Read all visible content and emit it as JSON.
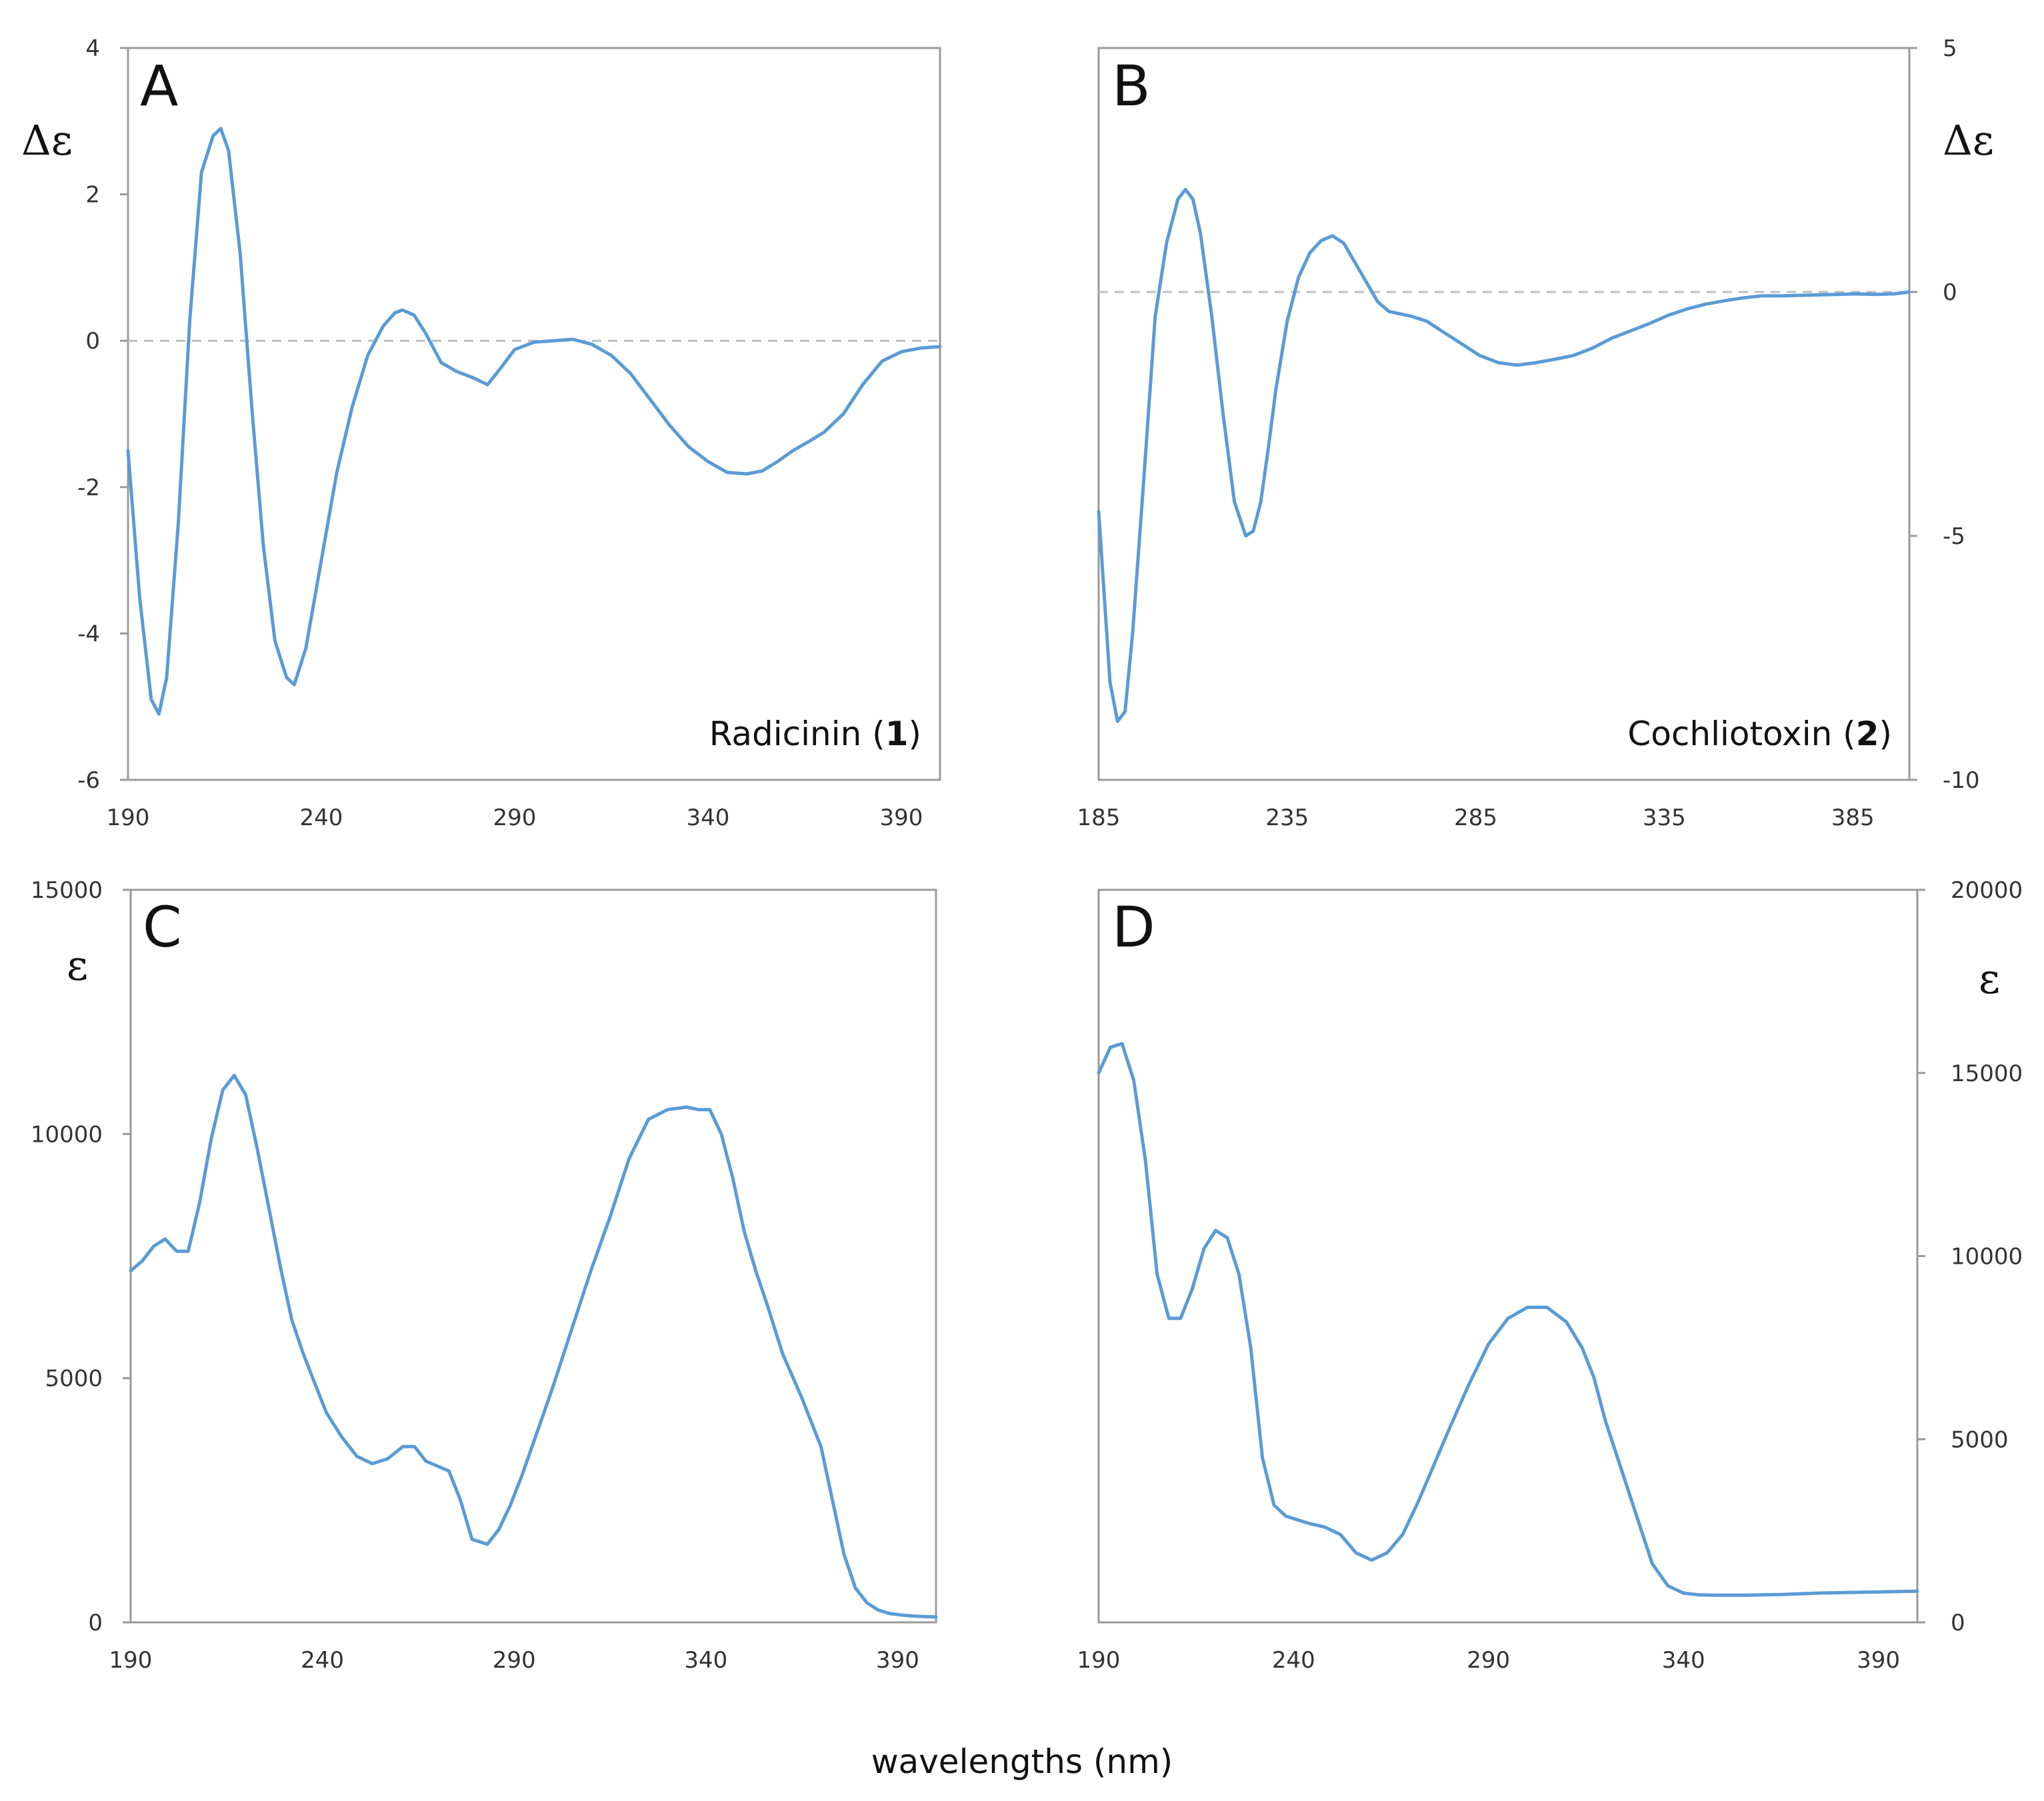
{
  "x_axis_label": "wavelengths (nm)",
  "line_color": "#5b9bd5",
  "chart_data": [
    {
      "id": "A",
      "type": "line",
      "panel_label": "A",
      "ylabel": "Δε",
      "y_axis_side": "left",
      "compound_name": "Radicinin (",
      "compound_number": "1",
      "compound_close": ")",
      "xlim": [
        190,
        400
      ],
      "ylim": [
        -6,
        4
      ],
      "xticks": [
        190,
        240,
        290,
        340,
        390
      ],
      "yticks": [
        4,
        2,
        0,
        -2,
        -4,
        -6
      ],
      "zero_line": true,
      "x": [
        190,
        193,
        196,
        198,
        200,
        203,
        206,
        209,
        212,
        214,
        216,
        219,
        222,
        225,
        228,
        231,
        233,
        236,
        240,
        244,
        248,
        252,
        256,
        259,
        261,
        264,
        267,
        271,
        275,
        279,
        283,
        286,
        290,
        295,
        300,
        305,
        310,
        315,
        320,
        325,
        330,
        335,
        340,
        345,
        350,
        354,
        358,
        362,
        366,
        370,
        375,
        380,
        385,
        390,
        395,
        400
      ],
      "y": [
        -1.5,
        -3.5,
        -4.9,
        -5.1,
        -4.6,
        -2.5,
        0.3,
        2.3,
        2.8,
        2.9,
        2.6,
        1.2,
        -0.9,
        -2.8,
        -4.1,
        -4.6,
        -4.7,
        -4.2,
        -3.0,
        -1.8,
        -0.9,
        -0.2,
        0.2,
        0.38,
        0.42,
        0.35,
        0.1,
        -0.3,
        -0.42,
        -0.5,
        -0.6,
        -0.4,
        -0.12,
        -0.02,
        0.0,
        0.02,
        -0.05,
        -0.2,
        -0.45,
        -0.8,
        -1.15,
        -1.45,
        -1.65,
        -1.8,
        -1.82,
        -1.78,
        -1.65,
        -1.5,
        -1.38,
        -1.25,
        -1.0,
        -0.6,
        -0.28,
        -0.15,
        -0.1,
        -0.08
      ]
    },
    {
      "id": "B",
      "type": "line",
      "panel_label": "B",
      "ylabel": "Δε",
      "y_axis_side": "right",
      "compound_name": "Cochliotoxin (",
      "compound_number": "2",
      "compound_close": ")",
      "xlim": [
        185,
        400
      ],
      "ylim": [
        -10,
        5
      ],
      "xticks": [
        185,
        235,
        285,
        335,
        385
      ],
      "yticks": [
        5,
        0,
        -5,
        -10
      ],
      "zero_line": true,
      "x": [
        185,
        188,
        190,
        192,
        194,
        197,
        200,
        203,
        206,
        208,
        210,
        212,
        215,
        218,
        221,
        224,
        226,
        228,
        230,
        232,
        235,
        238,
        241,
        244,
        247,
        250,
        253,
        256,
        259,
        262,
        265,
        268,
        272,
        276,
        281,
        286,
        291,
        296,
        301,
        306,
        311,
        316,
        321,
        326,
        331,
        336,
        341,
        346,
        351,
        356,
        361,
        366,
        371,
        376,
        381,
        386,
        391,
        396,
        400
      ],
      "y": [
        -4.5,
        -8.0,
        -8.8,
        -8.6,
        -7.0,
        -3.8,
        -0.5,
        1.0,
        1.9,
        2.1,
        1.9,
        1.2,
        -0.5,
        -2.5,
        -4.3,
        -5.0,
        -4.9,
        -4.3,
        -3.2,
        -2.0,
        -0.6,
        0.3,
        0.8,
        1.05,
        1.15,
        1.0,
        0.6,
        0.2,
        -0.2,
        -0.4,
        -0.45,
        -0.5,
        -0.6,
        -0.8,
        -1.05,
        -1.3,
        -1.45,
        -1.5,
        -1.45,
        -1.38,
        -1.3,
        -1.15,
        -0.95,
        -0.8,
        -0.65,
        -0.48,
        -0.35,
        -0.25,
        -0.18,
        -0.12,
        -0.08,
        -0.08,
        -0.07,
        -0.06,
        -0.05,
        -0.04,
        -0.05,
        -0.04,
        0.0
      ]
    },
    {
      "id": "C",
      "type": "line",
      "panel_label": "C",
      "ylabel": "ε",
      "y_axis_side": "left",
      "xlim": [
        190,
        400
      ],
      "ylim": [
        0,
        15000
      ],
      "xticks": [
        190,
        240,
        290,
        340,
        390
      ],
      "yticks": [
        15000,
        10000,
        5000,
        0
      ],
      "zero_line": false,
      "x": [
        190,
        193,
        196,
        199,
        202,
        205,
        208,
        211,
        214,
        217,
        220,
        223,
        226,
        229,
        232,
        235,
        238,
        241,
        245,
        249,
        253,
        257,
        261,
        264,
        267,
        270,
        273,
        276,
        279,
        283,
        286,
        289,
        292,
        296,
        300,
        305,
        310,
        315,
        320,
        325,
        330,
        335,
        338,
        341,
        344,
        347,
        350,
        353,
        356,
        360,
        365,
        370,
        373,
        376,
        379,
        382,
        385,
        388,
        391,
        394,
        397,
        400
      ],
      "y": [
        7200,
        7400,
        7700,
        7850,
        7600,
        7600,
        8600,
        9900,
        10900,
        11200,
        10800,
        9700,
        8500,
        7300,
        6200,
        5500,
        4900,
        4300,
        3800,
        3400,
        3250,
        3350,
        3600,
        3600,
        3300,
        3200,
        3100,
        2500,
        1700,
        1600,
        1900,
        2400,
        3000,
        3900,
        4800,
        6000,
        7200,
        8300,
        9500,
        10300,
        10500,
        10550,
        10500,
        10500,
        10000,
        9100,
        8000,
        7200,
        6500,
        5500,
        4600,
        3600,
        2500,
        1400,
        700,
        400,
        250,
        180,
        150,
        130,
        120,
        110
      ]
    },
    {
      "id": "D",
      "type": "line",
      "panel_label": "D",
      "ylabel": "ε",
      "y_axis_side": "right",
      "xlim": [
        190,
        400
      ],
      "ylim": [
        0,
        20000
      ],
      "xticks": [
        190,
        240,
        290,
        340,
        390
      ],
      "yticks": [
        20000,
        15000,
        10000,
        5000,
        0
      ],
      "zero_line": false,
      "x": [
        190,
        193,
        196,
        199,
        202,
        205,
        208,
        211,
        214,
        217,
        220,
        223,
        226,
        229,
        232,
        235,
        238,
        241,
        244,
        248,
        252,
        256,
        260,
        264,
        268,
        272,
        276,
        280,
        285,
        290,
        295,
        300,
        305,
        310,
        314,
        317,
        320,
        324,
        328,
        332,
        336,
        340,
        344,
        348,
        352,
        356,
        360,
        365,
        370,
        375,
        380,
        385,
        390,
        395,
        400
      ],
      "y": [
        15000,
        15700,
        15800,
        14800,
        12600,
        9500,
        8300,
        8300,
        9100,
        10200,
        10700,
        10500,
        9500,
        7500,
        4500,
        3200,
        2900,
        2800,
        2700,
        2600,
        2400,
        1900,
        1700,
        1900,
        2400,
        3300,
        4300,
        5300,
        6500,
        7600,
        8300,
        8600,
        8600,
        8200,
        7500,
        6700,
        5500,
        4200,
        2900,
        1600,
        1000,
        800,
        750,
        740,
        740,
        740,
        750,
        760,
        780,
        800,
        810,
        820,
        830,
        840,
        850
      ]
    }
  ]
}
